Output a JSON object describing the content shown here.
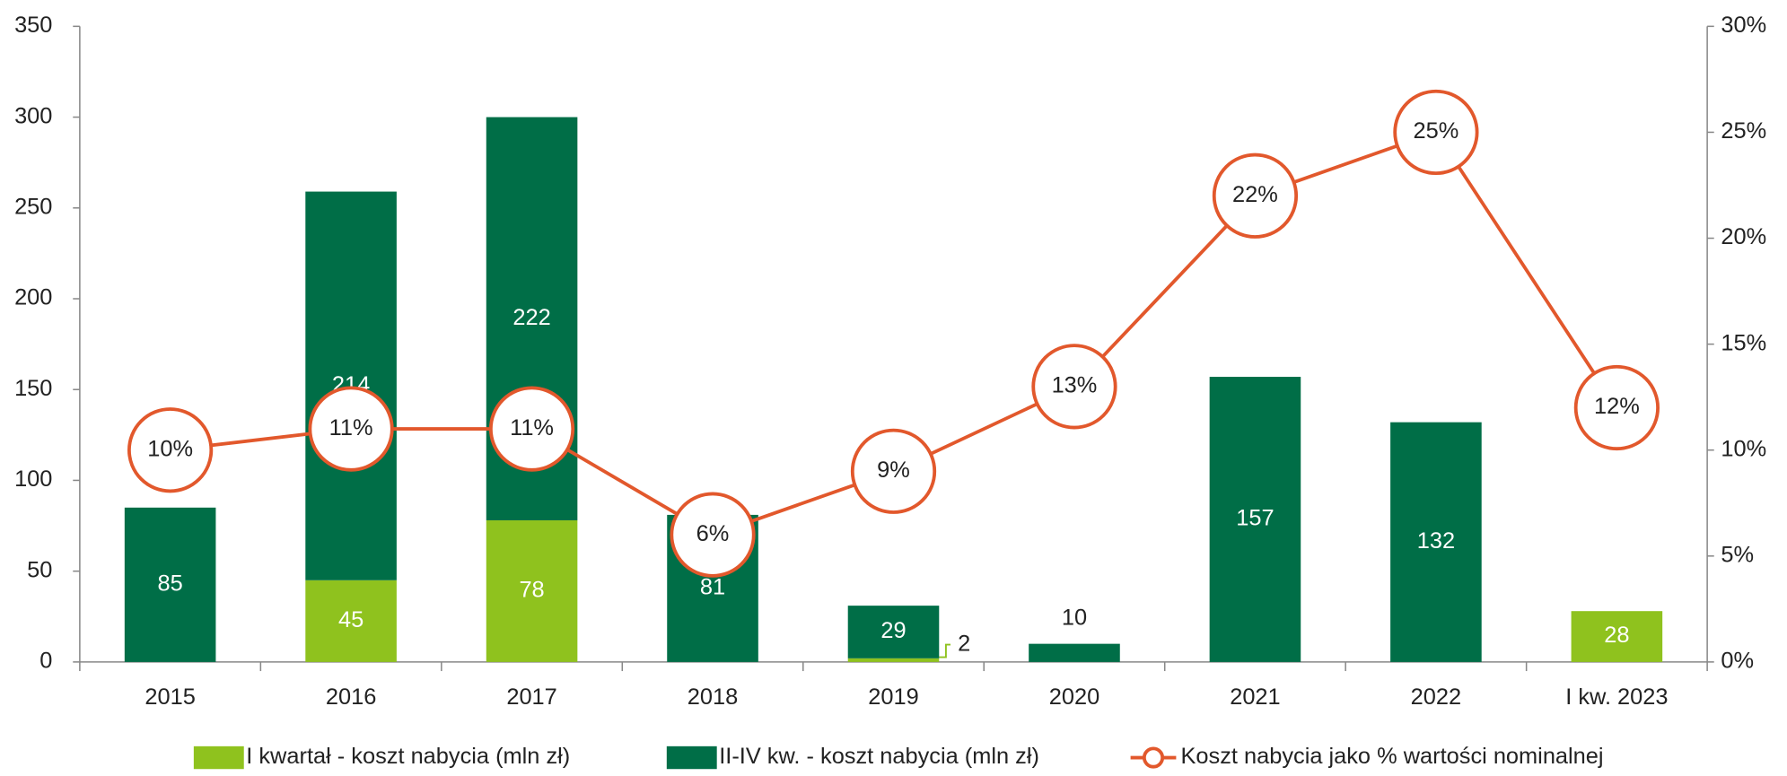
{
  "chart_data": {
    "type": "bar",
    "categories": [
      "2015",
      "2016",
      "2017",
      "2018",
      "2019",
      "2020",
      "2021",
      "2022",
      "I kw. 2023"
    ],
    "series": [
      {
        "name": "I kwartał - koszt nabycia (mln zł)",
        "color": "#8fc21e",
        "values": [
          null,
          45,
          78,
          null,
          2,
          null,
          null,
          null,
          28
        ]
      },
      {
        "name": "II-IV kw. - koszt nabycia (mln zł)",
        "color": "#006e47",
        "values": [
          85,
          214,
          222,
          81,
          29,
          10,
          157,
          132,
          null
        ]
      },
      {
        "name": "Koszt nabycia jako % wartości nominalnej",
        "color": "#e2582c",
        "type": "line",
        "axis": "y2",
        "values": [
          10,
          11,
          11,
          6,
          9,
          13,
          22,
          25,
          12
        ],
        "value_labels": [
          "10%",
          "11%",
          "11%",
          "6%",
          "9%",
          "13%",
          "22%",
          "25%",
          "12%"
        ]
      }
    ],
    "ylim": [
      0,
      350
    ],
    "yticks": [
      0,
      50,
      100,
      150,
      200,
      250,
      300,
      350
    ],
    "y2lim": [
      0,
      30
    ],
    "y2ticks": [
      {
        "value": 0,
        "label": "0%"
      },
      {
        "value": 5,
        "label": "5%"
      },
      {
        "value": 10,
        "label": "10%"
      },
      {
        "value": 15,
        "label": "15%"
      },
      {
        "value": 20,
        "label": "20%"
      },
      {
        "value": 25,
        "label": "25%"
      },
      {
        "value": 30,
        "label": "30%"
      }
    ],
    "grid": false,
    "legend": "bottom"
  }
}
